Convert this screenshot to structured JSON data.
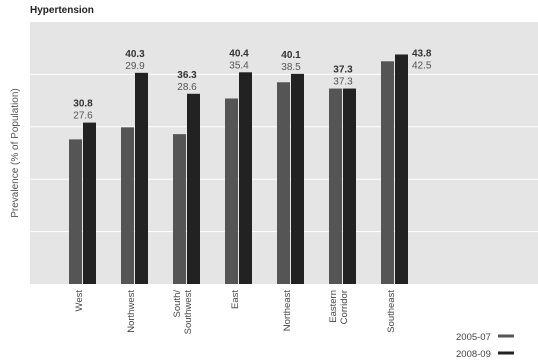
{
  "chart_data": {
    "type": "bar",
    "title": "Hypertension",
    "ylabel": "Prevalence (% of Population)",
    "xlabel": "",
    "ylim": [
      0,
      50
    ],
    "grid": true,
    "legend_position": "bottom-right",
    "categories": [
      "West",
      "Northwest",
      "South/ Southwest",
      "East",
      "Northeast",
      "Eastern Corridor",
      "Southeast"
    ],
    "series": [
      {
        "name": "2005-07",
        "color": "#555555",
        "values": [
          27.6,
          29.9,
          28.6,
          35.4,
          38.5,
          37.3,
          42.5
        ]
      },
      {
        "name": "2008-09",
        "color": "#222222",
        "values": [
          30.8,
          40.3,
          36.3,
          40.4,
          40.1,
          37.3,
          43.8
        ]
      }
    ]
  }
}
